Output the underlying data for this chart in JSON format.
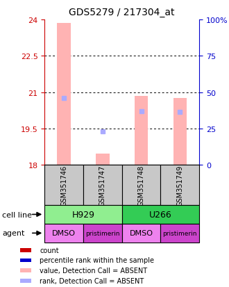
{
  "title": "GDS5279 / 217304_at",
  "samples": [
    "GSM351746",
    "GSM351747",
    "GSM351748",
    "GSM351749"
  ],
  "ylim": [
    18,
    24
  ],
  "yticks": [
    18,
    19.5,
    21,
    22.5,
    24
  ],
  "ytick_labels_left": [
    "18",
    "19.5",
    "21",
    "22.5",
    "24"
  ],
  "ytick_labels_right": [
    "0",
    "25",
    "50",
    "75",
    "100%"
  ],
  "bar_values": [
    23.85,
    18.45,
    20.85,
    20.75
  ],
  "bar_base": 18,
  "percentile_values": [
    20.75,
    19.38,
    20.22,
    20.18
  ],
  "bar_color_absent": "#ffb3b3",
  "percentile_color_absent": "#aaaaff",
  "cell_line_groups": [
    {
      "label": "H929",
      "span": [
        0,
        2
      ],
      "color": "#90ee90"
    },
    {
      "label": "U266",
      "span": [
        2,
        4
      ],
      "color": "#33cc55"
    }
  ],
  "agent_groups": [
    {
      "label": "DMSO",
      "span": [
        0,
        1
      ],
      "color": "#ee82ee"
    },
    {
      "label": "pristimerin",
      "span": [
        1,
        2
      ],
      "color": "#cc44cc"
    },
    {
      "label": "DMSO",
      "span": [
        2,
        3
      ],
      "color": "#ee82ee"
    },
    {
      "label": "pristimerin",
      "span": [
        3,
        4
      ],
      "color": "#cc44cc"
    }
  ],
  "legend_items": [
    {
      "color": "#cc0000",
      "label": "count"
    },
    {
      "color": "#0000cc",
      "label": "percentile rank within the sample"
    },
    {
      "color": "#ffb3b3",
      "label": "value, Detection Call = ABSENT"
    },
    {
      "color": "#aaaaff",
      "label": "rank, Detection Call = ABSENT"
    }
  ],
  "left_label_color": "#cc0000",
  "right_label_color": "#0000cc",
  "sample_box_color": "#c8c8c8",
  "bar_width": 0.35
}
